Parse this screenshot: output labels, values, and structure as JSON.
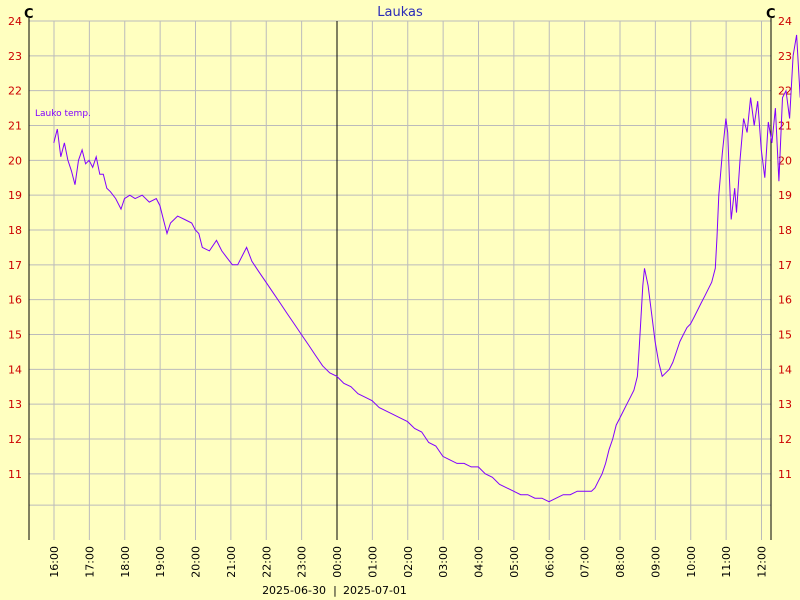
{
  "chart_data": {
    "type": "line",
    "title": "Laukas",
    "y_unit_left": "C",
    "y_unit_right": "C",
    "ylim": [
      9.1,
      24
    ],
    "y_ticks": [
      11,
      12,
      13,
      14,
      15,
      16,
      17,
      18,
      19,
      20,
      21,
      22,
      23,
      24
    ],
    "x_ticks": [
      "16:00",
      "17:00",
      "18:00",
      "19:00",
      "20:00",
      "21:00",
      "22:00",
      "23:00",
      "00:00",
      "01:00",
      "02:00",
      "03:00",
      "04:00",
      "05:00",
      "06:00",
      "07:00",
      "08:00",
      "09:00",
      "10:00",
      "11:00",
      "12:00"
    ],
    "date_left": "2025-06-30",
    "date_right": "2025-07-01",
    "date_separator": "|",
    "grid": true,
    "series": [
      {
        "name": "Lauko temp.",
        "x_unit": "hours since 15:00 on 2025-06-30",
        "points": [
          [
            0.0,
            20.5
          ],
          [
            0.1,
            20.9
          ],
          [
            0.2,
            20.1
          ],
          [
            0.3,
            20.5
          ],
          [
            0.4,
            20.0
          ],
          [
            0.5,
            19.7
          ],
          [
            0.6,
            19.3
          ],
          [
            0.7,
            20.0
          ],
          [
            0.8,
            20.3
          ],
          [
            0.9,
            19.9
          ],
          [
            1.0,
            20.0
          ],
          [
            1.1,
            19.8
          ],
          [
            1.2,
            20.1
          ],
          [
            1.3,
            19.6
          ],
          [
            1.4,
            19.6
          ],
          [
            1.5,
            19.2
          ],
          [
            1.6,
            19.1
          ],
          [
            1.75,
            18.9
          ],
          [
            1.9,
            18.6
          ],
          [
            2.0,
            18.9
          ],
          [
            2.15,
            19.0
          ],
          [
            2.3,
            18.9
          ],
          [
            2.5,
            19.0
          ],
          [
            2.7,
            18.8
          ],
          [
            2.9,
            18.9
          ],
          [
            3.0,
            18.7
          ],
          [
            3.1,
            18.3
          ],
          [
            3.2,
            17.9
          ],
          [
            3.3,
            18.2
          ],
          [
            3.5,
            18.4
          ],
          [
            3.7,
            18.3
          ],
          [
            3.9,
            18.2
          ],
          [
            4.0,
            18.0
          ],
          [
            4.1,
            17.9
          ],
          [
            4.2,
            17.5
          ],
          [
            4.4,
            17.4
          ],
          [
            4.6,
            17.7
          ],
          [
            4.75,
            17.4
          ],
          [
            4.9,
            17.2
          ],
          [
            5.05,
            17.0
          ],
          [
            5.2,
            17.0
          ],
          [
            5.35,
            17.3
          ],
          [
            5.45,
            17.5
          ],
          [
            5.6,
            17.1
          ],
          [
            5.8,
            16.8
          ],
          [
            6.0,
            16.5
          ],
          [
            6.2,
            16.2
          ],
          [
            6.4,
            15.9
          ],
          [
            6.6,
            15.6
          ],
          [
            6.8,
            15.3
          ],
          [
            7.0,
            15.0
          ],
          [
            7.2,
            14.7
          ],
          [
            7.4,
            14.4
          ],
          [
            7.6,
            14.1
          ],
          [
            7.8,
            13.9
          ],
          [
            8.0,
            13.8
          ],
          [
            8.2,
            13.6
          ],
          [
            8.4,
            13.5
          ],
          [
            8.6,
            13.3
          ],
          [
            8.8,
            13.2
          ],
          [
            9.0,
            13.1
          ],
          [
            9.2,
            12.9
          ],
          [
            9.4,
            12.8
          ],
          [
            9.6,
            12.7
          ],
          [
            9.8,
            12.6
          ],
          [
            10.0,
            12.5
          ],
          [
            10.2,
            12.3
          ],
          [
            10.4,
            12.2
          ],
          [
            10.6,
            11.9
          ],
          [
            10.8,
            11.8
          ],
          [
            11.0,
            11.5
          ],
          [
            11.2,
            11.4
          ],
          [
            11.4,
            11.3
          ],
          [
            11.6,
            11.3
          ],
          [
            11.8,
            11.2
          ],
          [
            12.0,
            11.2
          ],
          [
            12.2,
            11.0
          ],
          [
            12.4,
            10.9
          ],
          [
            12.6,
            10.7
          ],
          [
            12.8,
            10.6
          ],
          [
            13.0,
            10.5
          ],
          [
            13.2,
            10.4
          ],
          [
            13.4,
            10.4
          ],
          [
            13.6,
            10.3
          ],
          [
            13.8,
            10.3
          ],
          [
            14.0,
            10.2
          ],
          [
            14.2,
            10.3
          ],
          [
            14.4,
            10.4
          ],
          [
            14.6,
            10.4
          ],
          [
            14.8,
            10.5
          ],
          [
            15.0,
            10.5
          ],
          [
            15.2,
            10.5
          ],
          [
            15.3,
            10.6
          ],
          [
            15.4,
            10.8
          ],
          [
            15.5,
            11.0
          ],
          [
            15.6,
            11.3
          ],
          [
            15.7,
            11.7
          ],
          [
            15.8,
            12.0
          ],
          [
            15.9,
            12.4
          ],
          [
            16.0,
            12.6
          ],
          [
            16.1,
            12.8
          ],
          [
            16.2,
            13.0
          ],
          [
            16.3,
            13.2
          ],
          [
            16.4,
            13.4
          ],
          [
            16.5,
            13.8
          ],
          [
            16.55,
            14.6
          ],
          [
            16.6,
            15.5
          ],
          [
            16.65,
            16.4
          ],
          [
            16.7,
            16.9
          ],
          [
            16.8,
            16.4
          ],
          [
            16.9,
            15.6
          ],
          [
            17.0,
            14.8
          ],
          [
            17.1,
            14.2
          ],
          [
            17.2,
            13.8
          ],
          [
            17.3,
            13.9
          ],
          [
            17.4,
            14.0
          ],
          [
            17.5,
            14.2
          ],
          [
            17.6,
            14.5
          ],
          [
            17.7,
            14.8
          ],
          [
            17.8,
            15.0
          ],
          [
            17.9,
            15.2
          ],
          [
            18.0,
            15.3
          ],
          [
            18.1,
            15.5
          ],
          [
            18.2,
            15.7
          ],
          [
            18.3,
            15.9
          ],
          [
            18.4,
            16.1
          ],
          [
            18.5,
            16.3
          ],
          [
            18.6,
            16.5
          ],
          [
            18.7,
            16.9
          ],
          [
            18.75,
            17.8
          ],
          [
            18.8,
            19.0
          ],
          [
            18.9,
            20.2
          ],
          [
            19.0,
            21.2
          ],
          [
            19.05,
            20.8
          ],
          [
            19.1,
            19.5
          ],
          [
            19.15,
            18.3
          ],
          [
            19.25,
            19.2
          ],
          [
            19.3,
            18.5
          ],
          [
            19.4,
            20.0
          ],
          [
            19.5,
            21.2
          ],
          [
            19.6,
            20.8
          ],
          [
            19.7,
            21.8
          ],
          [
            19.8,
            21.0
          ],
          [
            19.9,
            21.7
          ],
          [
            20.0,
            20.3
          ],
          [
            20.1,
            19.5
          ],
          [
            20.2,
            21.1
          ],
          [
            20.3,
            20.5
          ],
          [
            20.4,
            21.5
          ],
          [
            20.5,
            19.4
          ],
          [
            20.6,
            21.8
          ],
          [
            20.7,
            22.0
          ],
          [
            20.8,
            21.2
          ],
          [
            20.9,
            23.0
          ],
          [
            21.0,
            23.6
          ],
          [
            21.1,
            21.8
          ],
          [
            21.2,
            22.3
          ],
          [
            21.3,
            21.6
          ],
          [
            21.4,
            23.3
          ],
          [
            21.5,
            22.0
          ],
          [
            21.6,
            22.6
          ],
          [
            21.7,
            22.3
          ],
          [
            21.8,
            23.5
          ],
          [
            21.9,
            22.8
          ],
          [
            22.0,
            22.0
          ],
          [
            22.1,
            22.5
          ],
          [
            22.2,
            21.9
          ]
        ]
      }
    ]
  }
}
